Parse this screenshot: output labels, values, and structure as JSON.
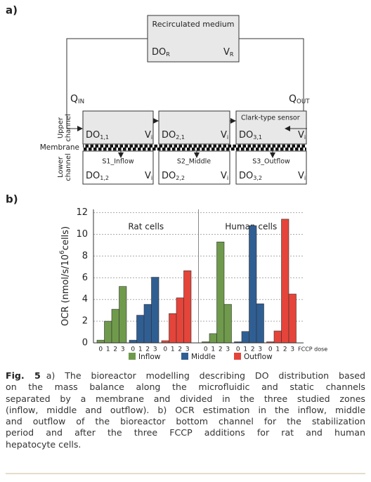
{
  "diagram": {
    "label": "a)",
    "reservoir": {
      "title": "Recirculated medium",
      "do": {
        "main": "DO",
        "sub": "R"
      },
      "v": {
        "main": "V",
        "sub": "R"
      }
    },
    "q_in": {
      "main": "Q",
      "sub": "IN"
    },
    "q_out": {
      "main": "Q",
      "sub": "OUT"
    },
    "upper_channel": [
      "Upper",
      "channel"
    ],
    "lower_channel": [
      "Lower",
      "channel"
    ],
    "membrane": "Membrane",
    "sensor": "Clark-type sensor",
    "upper": [
      {
        "main": "DO",
        "sub": "1,1"
      },
      {
        "main": "DO",
        "sub": "2,1"
      },
      {
        "main": "DO",
        "sub": "3,1"
      }
    ],
    "lower": [
      {
        "main": "DO",
        "sub": "1,2"
      },
      {
        "main": "DO",
        "sub": "2,2"
      },
      {
        "main": "DO",
        "sub": "3,2"
      }
    ],
    "zones": [
      "S1_Inflow",
      "S2_Middle",
      "S3_Outflow"
    ],
    "volume": {
      "main": "V",
      "sub": "i"
    }
  },
  "chart_data": {
    "type": "bar",
    "label": "b)",
    "groups": [
      "Rat cells",
      "Human cells"
    ],
    "categories": [
      "0",
      "1",
      "2",
      "3",
      "0",
      "1",
      "2",
      "3"
    ],
    "xlabel": "FCCP dose",
    "ylabel": [
      "OCR (nmol/s/10",
      "6",
      "cells)"
    ],
    "ylim": [
      0,
      12.3
    ],
    "yticks": [
      0,
      2,
      4,
      6,
      8,
      10,
      12
    ],
    "grid": true,
    "series": [
      {
        "name": "Inflow",
        "color": "#6f9a4c",
        "values": [
          0.25,
          2.0,
          3.1,
          5.2,
          0.1,
          0.85,
          9.3,
          3.55
        ]
      },
      {
        "name": "Middle",
        "color": "#2f5e93",
        "values": [
          0.25,
          2.55,
          3.55,
          6.05,
          0.1,
          1.05,
          10.8,
          3.6
        ]
      },
      {
        "name": "Outflow",
        "color": "#e5443a",
        "values": [
          0.2,
          2.7,
          4.15,
          6.65,
          0.1,
          1.1,
          11.4,
          4.5
        ]
      }
    ]
  },
  "caption": {
    "label": "Fig. 5",
    "lines": [
      "a) The bioreactor modelling describing DO distribution based",
      "on the mass balance along the microfluidic and static channels",
      "separated by a membrane and divided in the three studied zones",
      "(inflow, middle and outflow). b) OCR estimation in the inflow, middle",
      "and outflow of the bioreactor bottom channel for the stabilization",
      "period and after the three FCCP additions for rat and human",
      "hepatocyte cells."
    ]
  }
}
